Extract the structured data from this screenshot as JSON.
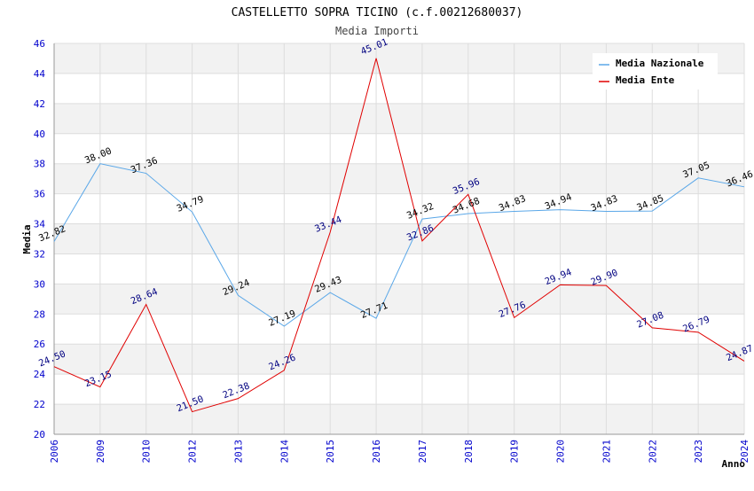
{
  "chart_data": {
    "type": "line",
    "title": "CASTELLETTO SOPRA TICINO (c.f.00212680037)",
    "subtitle": "Media Importi",
    "xlabel": "Anno",
    "ylabel": "Media",
    "ylim": [
      20,
      46
    ],
    "yticks": [
      20,
      22,
      24,
      26,
      28,
      30,
      32,
      34,
      36,
      38,
      40,
      42,
      44,
      46
    ],
    "categories": [
      "2006",
      "2009",
      "2010",
      "2012",
      "2013",
      "2014",
      "2015",
      "2016",
      "2017",
      "2018",
      "2019",
      "2020",
      "2021",
      "2022",
      "2023",
      "2024"
    ],
    "grid": true,
    "legend_position": "top-right",
    "series": [
      {
        "name": "Media Nazionale",
        "color": "#5aa7e8",
        "label_color": "#000000",
        "values": [
          32.82,
          38.0,
          37.36,
          34.79,
          29.24,
          27.19,
          29.43,
          27.71,
          34.32,
          34.68,
          34.83,
          34.94,
          34.83,
          34.85,
          37.05,
          36.46
        ],
        "labels": [
          "32.82",
          "38.00",
          "37.36",
          "34.79",
          "29.24",
          "27.19",
          "29.43",
          "27.71",
          "34.32",
          "34.68",
          "34.83",
          "34.94",
          "34.83",
          "34.85",
          "37.05",
          "36.46"
        ]
      },
      {
        "name": "Media Ente",
        "color": "#e00000",
        "label_color": "#000080",
        "values": [
          24.5,
          23.15,
          28.64,
          21.5,
          22.38,
          24.26,
          33.44,
          45.01,
          32.86,
          35.96,
          27.76,
          29.94,
          29.9,
          27.08,
          26.79,
          24.87
        ],
        "labels": [
          "24.50",
          "23.15",
          "28.64",
          "21.50",
          "22.38",
          "24.26",
          "33.44",
          "45.01",
          "32.86",
          "35.96",
          "27.76",
          "29.94",
          "29.90",
          "27.08",
          "26.79",
          "24.87"
        ]
      }
    ],
    "colors": {
      "band": "#f2f2f2",
      "grid": "#dddddd",
      "tick": "#0000cc"
    }
  }
}
